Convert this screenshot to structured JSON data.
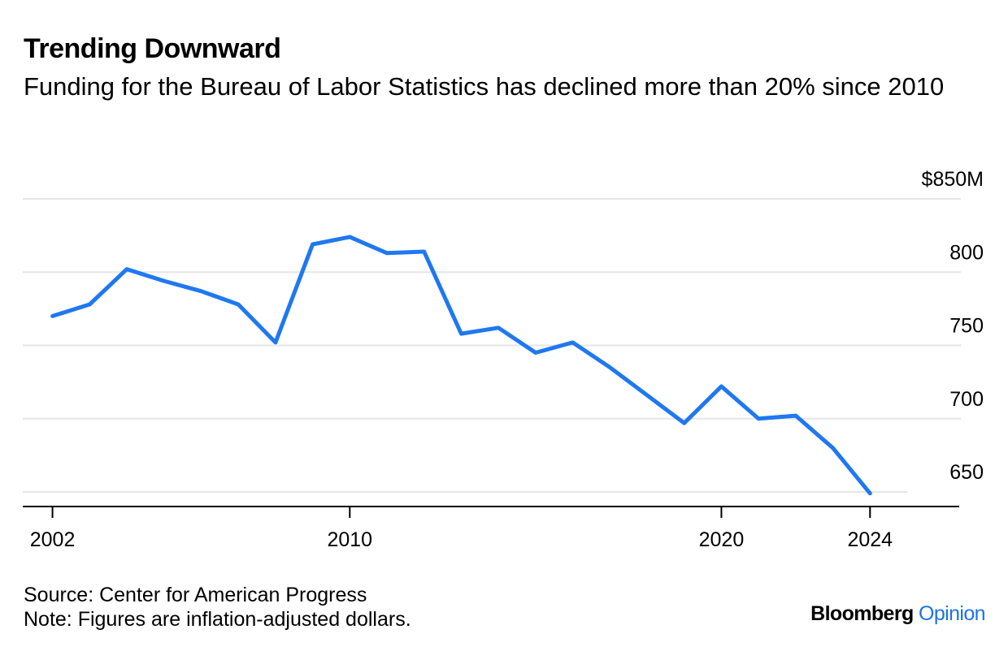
{
  "header": {
    "title": "Trending Downward",
    "subtitle": "Funding for the Bureau of Labor Statistics has declined more than 20% since 2010"
  },
  "footer": {
    "source": "Source: Center for American Progress",
    "note": "Note: Figures are inflation-adjusted dollars."
  },
  "brand": {
    "name": "Bloomberg",
    "section": "Opinion",
    "section_color": "#1a73e8"
  },
  "chart_data": {
    "type": "line",
    "title": "Trending Downward",
    "subtitle": "Funding for the Bureau of Labor Statistics has declined more than 20% since 2010",
    "xlabel": "",
    "ylabel": "",
    "x": [
      2002,
      2003,
      2004,
      2005,
      2006,
      2007,
      2008,
      2009,
      2010,
      2011,
      2012,
      2013,
      2014,
      2015,
      2016,
      2017,
      2018,
      2019,
      2020,
      2021,
      2022,
      2023,
      2024
    ],
    "series": [
      {
        "color": "#1f78f0",
        "values": [
          770,
          778,
          802,
          794,
          787,
          778,
          752,
          819,
          824,
          813,
          814,
          758,
          762,
          745,
          752,
          735,
          716,
          697,
          722,
          700,
          702,
          680,
          649
        ]
      }
    ],
    "x_ticks": [
      2002,
      2010,
      2020,
      2024
    ],
    "x_tick_labels": [
      "2002",
      "2010",
      "2020",
      "2024"
    ],
    "y_ticks": [
      650,
      700,
      750,
      800,
      850
    ],
    "y_tick_labels": [
      "650",
      "700",
      "750",
      "800",
      "$850M"
    ],
    "xlim": [
      2001.2,
      2026.4
    ],
    "ylim": [
      640,
      850
    ],
    "grid": true,
    "y_axis_position": "right"
  }
}
